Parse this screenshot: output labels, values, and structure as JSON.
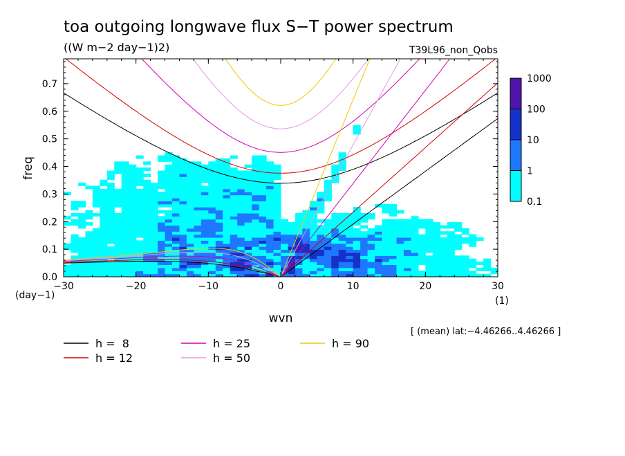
{
  "chart_data": {
    "type": "heatmap",
    "title": "toa outgoing longwave flux S−T power spectrum",
    "units_line": "((W m−2 day−1)2)",
    "experiment": "T39L96_non_Qobs",
    "xlabel": "wvn",
    "ylabel": "freq",
    "x_unit": "(1)",
    "y_unit": "(day−1)",
    "xlim": [
      -30,
      30
    ],
    "ylim": [
      0.0,
      0.79
    ],
    "x_ticks": [
      -30,
      -20,
      -10,
      0,
      10,
      20,
      30
    ],
    "x_tick_labels": [
      "−30",
      "−20",
      "−10",
      "0",
      "10",
      "20",
      "30"
    ],
    "y_ticks": [
      0.0,
      0.1,
      0.2,
      0.3,
      0.4,
      0.5,
      0.6,
      0.7
    ],
    "y_tick_labels": [
      "0.0",
      "0.1",
      "0.2",
      "0.3",
      "0.4",
      "0.5",
      "0.6",
      "0.7"
    ],
    "footnote": "[ (mean) lat:−4.46266..4.46266 ]",
    "colorbar": {
      "levels": [
        "0.1",
        "1",
        "10",
        "100",
        "1000"
      ],
      "colors": [
        "#00ffff",
        "#1e78ff",
        "#1432c8",
        "#5014aa"
      ]
    },
    "equivalent_depths": [
      {
        "label": "h =  8",
        "depth": 8,
        "color": "#000000"
      },
      {
        "label": "h = 12",
        "depth": 12,
        "color": "#d40000"
      },
      {
        "label": "h = 25",
        "depth": 25,
        "color": "#d200b4"
      },
      {
        "label": "h = 50",
        "depth": 50,
        "color": "#e696e6"
      },
      {
        "label": "h = 90",
        "depth": 90,
        "color": "#f0c800"
      }
    ]
  }
}
